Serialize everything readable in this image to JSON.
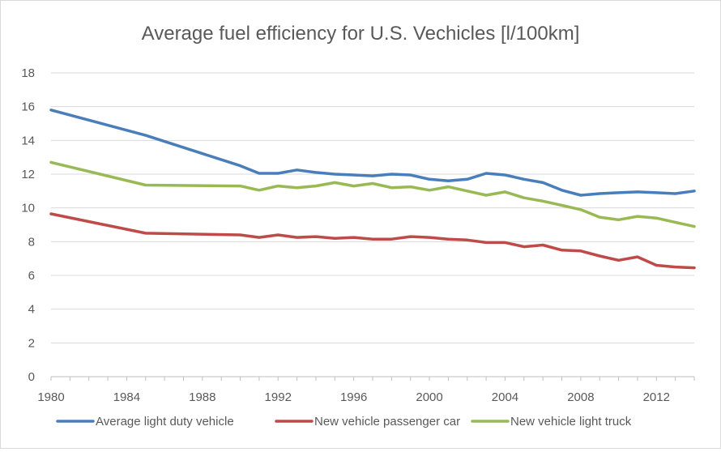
{
  "chart_data": {
    "type": "line",
    "title": "Average fuel efficiency for U.S. Vechicles [l/100km]",
    "xlabel": "",
    "ylabel": "",
    "xlim": [
      1980,
      2014
    ],
    "ylim": [
      0,
      18
    ],
    "x_ticks": [
      "1980",
      "1984",
      "1988",
      "1992",
      "1996",
      "2000",
      "2004",
      "2008",
      "2012"
    ],
    "y_ticks": [
      "0",
      "2",
      "4",
      "6",
      "8",
      "10",
      "12",
      "14",
      "16",
      "18"
    ],
    "grid": true,
    "legend_position": "bottom",
    "x": [
      1980,
      1985,
      1990,
      1991,
      1992,
      1993,
      1994,
      1995,
      1996,
      1997,
      1998,
      1999,
      2000,
      2001,
      2002,
      2003,
      2004,
      2005,
      2006,
      2007,
      2008,
      2009,
      2010,
      2011,
      2012,
      2013,
      2014
    ],
    "series": [
      {
        "name": "Average light duty vehicle",
        "color": "#4a7ebb",
        "values": [
          15.8,
          14.3,
          12.5,
          12.05,
          12.05,
          12.25,
          12.1,
          12.0,
          11.95,
          11.9,
          12.0,
          11.95,
          11.7,
          11.6,
          11.7,
          12.05,
          11.95,
          11.7,
          11.5,
          11.05,
          10.75,
          10.85,
          10.9,
          10.95,
          10.9,
          10.85,
          11.0
        ]
      },
      {
        "name": "New vehicle passenger car",
        "color": "#be4b48",
        "values": [
          9.65,
          8.5,
          8.4,
          8.25,
          8.4,
          8.25,
          8.3,
          8.2,
          8.25,
          8.15,
          8.15,
          8.3,
          8.25,
          8.15,
          8.1,
          7.95,
          7.95,
          7.7,
          7.8,
          7.5,
          7.45,
          7.15,
          6.9,
          7.1,
          6.6,
          6.5,
          6.45
        ]
      },
      {
        "name": "New vehicle light truck",
        "color": "#98b954",
        "values": [
          12.7,
          11.35,
          11.3,
          11.05,
          11.3,
          11.2,
          11.3,
          11.5,
          11.3,
          11.45,
          11.2,
          11.25,
          11.05,
          11.25,
          11.0,
          10.75,
          10.95,
          10.6,
          10.4,
          10.15,
          9.9,
          9.45,
          9.3,
          9.5,
          9.4,
          9.15,
          8.9
        ]
      }
    ]
  }
}
